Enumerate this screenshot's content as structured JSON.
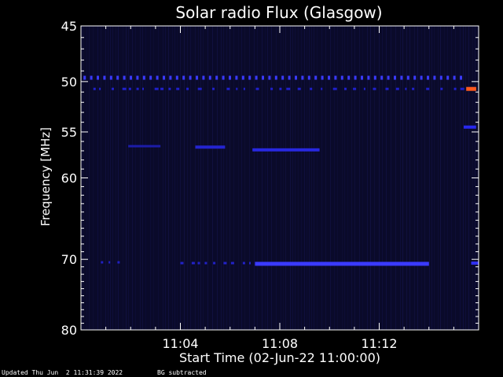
{
  "chart_data": {
    "type": "heatmap",
    "title": "Solar radio Flux (Glasgow)",
    "xlabel": "Start Time (02-Jun-22 11:00:00)",
    "ylabel": "Frequency [MHz]",
    "x_unit": "minutes after 11:00:00",
    "xlim": [
      0,
      16.0
    ],
    "ylim": [
      45,
      80
    ],
    "y_scale": "log",
    "y_ticks": [
      {
        "value": 45,
        "label": "45"
      },
      {
        "value": 50,
        "label": "50"
      },
      {
        "value": 55,
        "label": "55"
      },
      {
        "value": 60,
        "label": "60"
      },
      {
        "value": 70,
        "label": "70"
      },
      {
        "value": 80,
        "label": "80"
      }
    ],
    "x_ticks": [
      {
        "value": 4,
        "label": "11:04"
      },
      {
        "value": 8,
        "label": "11:08"
      },
      {
        "value": 12,
        "label": "11:12"
      }
    ],
    "background_color": "#0a0a2a",
    "features": [
      {
        "name": "50 MHz periodic interference",
        "freq_mhz": 49.6,
        "t_start": 0.1,
        "t_end": 15.4,
        "intensity": "medium",
        "color": "#3a3aff",
        "pattern": "dashed"
      },
      {
        "name": "51 MHz sparse emission",
        "freq_mhz": 50.7,
        "t_start": 0.5,
        "t_end": 15.3,
        "intensity": "low",
        "color": "#2020cc",
        "pattern": "dotted"
      },
      {
        "name": "51 MHz strong emission",
        "freq_mhz": 50.7,
        "t_start": 15.5,
        "t_end": 15.9,
        "intensity": "high",
        "color": "#ff5a1e",
        "pattern": "solid"
      },
      {
        "name": "54.5 MHz emission",
        "freq_mhz": 54.5,
        "t_start": 15.4,
        "t_end": 15.9,
        "intensity": "medium",
        "color": "#2828ee",
        "pattern": "solid"
      },
      {
        "name": "56.5 MHz band A",
        "freq_mhz": 56.5,
        "t_start": 1.9,
        "t_end": 3.2,
        "intensity": "low",
        "color": "#1c1ca8",
        "pattern": "solid"
      },
      {
        "name": "56.5 MHz band B",
        "freq_mhz": 56.6,
        "t_start": 4.6,
        "t_end": 5.8,
        "intensity": "medium",
        "color": "#2424d0",
        "pattern": "solid"
      },
      {
        "name": "57 MHz band C",
        "freq_mhz": 56.9,
        "t_start": 6.9,
        "t_end": 9.6,
        "intensity": "medium",
        "color": "#2828e0",
        "pattern": "solid"
      },
      {
        "name": "70.5 MHz interference",
        "freq_mhz": 70.4,
        "t_start": 0.8,
        "t_end": 1.8,
        "intensity": "low",
        "color": "#2020c0",
        "pattern": "dotted"
      },
      {
        "name": "70.5 MHz sparse",
        "freq_mhz": 70.5,
        "t_start": 4.0,
        "t_end": 6.9,
        "intensity": "low",
        "color": "#2222c8",
        "pattern": "dotted"
      },
      {
        "name": "70.5 MHz strong band",
        "freq_mhz": 70.6,
        "t_start": 7.0,
        "t_end": 14.0,
        "intensity": "high",
        "color": "#3a3aff",
        "pattern": "solid"
      },
      {
        "name": "70.5 MHz edge",
        "freq_mhz": 70.5,
        "t_start": 15.7,
        "t_end": 16.0,
        "intensity": "medium",
        "color": "#3030f0",
        "pattern": "solid"
      }
    ]
  },
  "footer": {
    "updated": "Updated Thu Jun  2 11:31:39 2022",
    "mode": "BG subtracted"
  }
}
